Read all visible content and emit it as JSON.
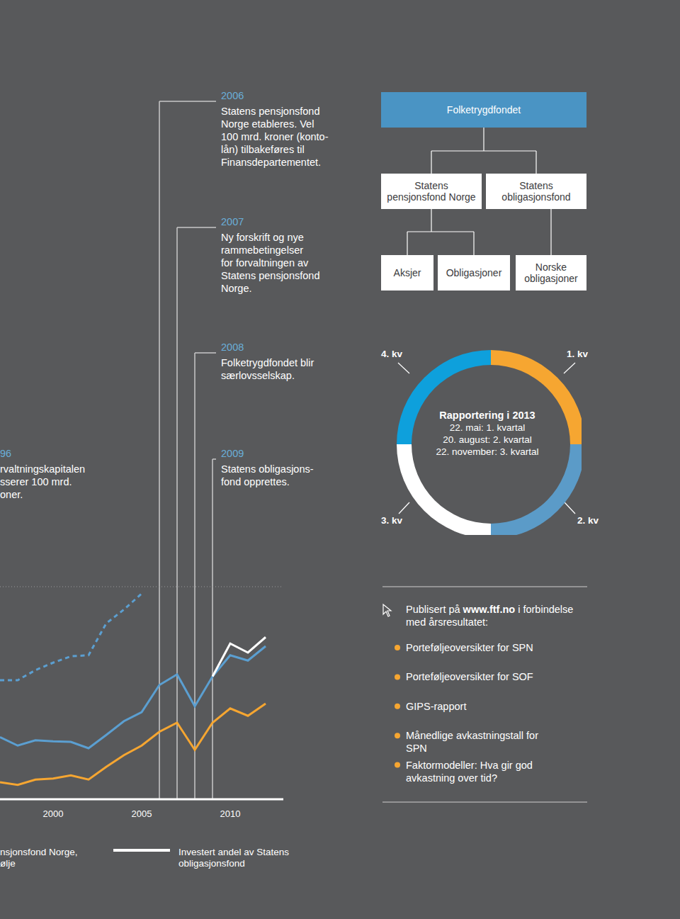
{
  "timeline": [
    {
      "year": "96",
      "lines": [
        "rvaltningskapitalen",
        "sserer 100 mrd.",
        "oner."
      ]
    },
    {
      "year": 2006,
      "lines": [
        "Statens pensjonsfond",
        "Norge etableres. Vel",
        "100 mrd. kroner (konto-",
        "lån) tilbakeføres til",
        "Finansdepartementet."
      ]
    },
    {
      "year": 2007,
      "lines": [
        "Ny forskrift og nye",
        "rammebetingelser",
        "for forvaltningen av",
        "Statens pensjonsfond",
        "Norge."
      ]
    },
    {
      "year": 2008,
      "lines": [
        "Folketrygdfondet blir",
        "særlovsselskap."
      ]
    },
    {
      "year": 2009,
      "lines": [
        "Statens obligasjons-",
        "fond opprettes."
      ]
    }
  ],
  "org_chart": {
    "root": "Folketrygdfondet",
    "children": [
      {
        "label": [
          "Statens",
          "pensjonsfond Norge"
        ],
        "children": [
          [
            "Aksjer"
          ],
          [
            "Obligasjoner"
          ]
        ]
      },
      {
        "label": [
          "Statens",
          "obligasjonsfond"
        ],
        "children": [
          [
            "Norske",
            "obligasjoner"
          ]
        ]
      }
    ]
  },
  "chart_data": [
    {
      "type": "line",
      "x": [
        1997,
        1998,
        1999,
        2000,
        2001,
        2002,
        2003,
        2004,
        2005,
        2006,
        2007,
        2008,
        2009,
        2010,
        2011,
        2012
      ],
      "xlim": [
        1997,
        2013
      ],
      "xticks": [
        2000,
        2005,
        2010
      ],
      "ylim": [
        0,
        4
      ],
      "yticks": [
        0,
        1,
        2,
        4
      ],
      "grid": true,
      "tick_labels": "x",
      "legend": "bottom",
      "annotations": [
        "nsjonsfond Norge,",
        "ølje"
      ],
      "series": [
        {
          "color": "#5b9fd1",
          "line_style": "dashed",
          "values": [
            2.24,
            2.24,
            2.43,
            2.57,
            2.69,
            2.71,
            3.31,
            3.57,
            3.87,
            null,
            null,
            null,
            null,
            null,
            null,
            null
          ]
        },
        {
          "color": "#5b9fd1",
          "line_style": "solid",
          "values": [
            1.17,
            1.01,
            1.11,
            1.09,
            1.08,
            0.96,
            1.21,
            1.47,
            1.64,
            2.15,
            2.35,
            1.75,
            2.31,
            2.71,
            2.61,
            2.88
          ]
        },
        {
          "color": "#f6a631",
          "line_style": "solid",
          "values": [
            0.32,
            0.27,
            0.37,
            0.39,
            0.45,
            0.37,
            0.61,
            0.83,
            1.01,
            1.27,
            1.44,
            0.93,
            1.44,
            1.71,
            1.57,
            1.8
          ]
        },
        {
          "name": "Investert andel av Statens obligasjonsfond",
          "color": "#ffffff",
          "line_style": "solid",
          "values": [
            null,
            null,
            null,
            null,
            null,
            null,
            null,
            null,
            null,
            null,
            null,
            null,
            2.31,
            2.93,
            2.76,
            3.05
          ]
        }
      ]
    },
    {
      "type": "pie",
      "title": "Rapportering i 2013",
      "categories": [
        "1. kv",
        "2. kv",
        "3. kv",
        "4. kv"
      ],
      "values": [
        25,
        25,
        25,
        25
      ],
      "colors": [
        "#f6a631",
        "#5b9bc8",
        "#ffffff",
        "#0ea0dc"
      ],
      "annotations": [
        "22. mai: 1. kvartal",
        "20. august: 2. kvartal",
        "22. november: 3. kvartal"
      ]
    }
  ],
  "publications": {
    "intro_before": "Publisert på ",
    "link": "www.ftf.no",
    "intro_after": " i forbindelse med årsresultatet:",
    "items": [
      "Porteføljeoversikter for SPN",
      "Porteføljeoversikter for SOF",
      "GIPS-rapport",
      "Månedlige avkastningstall for SPN",
      "Faktormodeller: Hva gir god avkastning over tid?"
    ]
  }
}
